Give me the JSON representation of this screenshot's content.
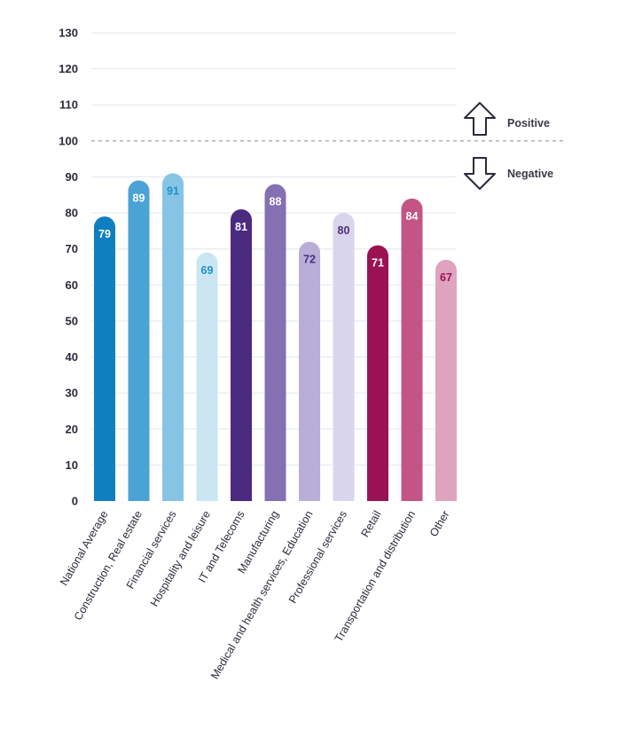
{
  "chart_data": {
    "type": "bar",
    "title": "",
    "xlabel": "",
    "ylabel": "",
    "ylim": [
      0,
      130
    ],
    "yticks": [
      0,
      10,
      20,
      30,
      40,
      50,
      60,
      70,
      80,
      90,
      100,
      110,
      120,
      130
    ],
    "grid": true,
    "reference_line": {
      "value": 100,
      "style": "dashed"
    },
    "annotations": [
      {
        "text": "Positive",
        "icon": "arrow-up-icon"
      },
      {
        "text": "Negative",
        "icon": "arrow-down-icon"
      }
    ],
    "categories": [
      "National Average",
      "Construction, Real estate",
      "Financial services",
      "Hospitality and leisure",
      "IT and Telecoms",
      "Manufacturing",
      "Medical and health services, Education",
      "Professional services",
      "Retail",
      "Transportation and distribution",
      "Other"
    ],
    "values": [
      79,
      89,
      91,
      69,
      81,
      88,
      72,
      80,
      71,
      84,
      67
    ],
    "colors": [
      "#0f7fc0",
      "#4aa3d4",
      "#86c4e6",
      "#cbe6f3",
      "#4b2b80",
      "#8470b2",
      "#b8aed8",
      "#d9d5ec",
      "#9b1254",
      "#c35486",
      "#dea3bf"
    ],
    "label_colors": [
      "#ffffff",
      "#ffffff",
      "#1f8fc8",
      "#1f8fc8",
      "#ffffff",
      "#ffffff",
      "#4b2b80",
      "#4b2b80",
      "#ffffff",
      "#ffffff",
      "#9b1254"
    ]
  }
}
